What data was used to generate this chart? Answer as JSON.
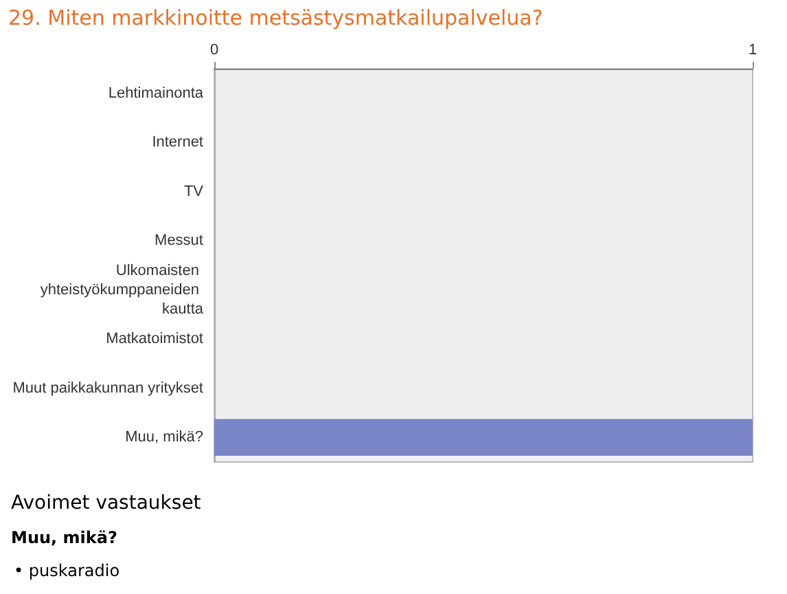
{
  "chart_data": {
    "type": "bar",
    "orientation": "horizontal",
    "title": "29. Miten markkinoitte metsästysmatkailupalvelua?",
    "categories": [
      "Lehtimainonta",
      "Internet",
      "TV",
      "Messut",
      "Ulkomaisten yhteistyökumppaneiden kautta",
      "Matkatoimistot",
      "Muut paikkakunnan yritykset",
      "Muu, mikä?"
    ],
    "values": [
      0,
      0,
      0,
      0,
      0,
      0,
      0,
      1
    ],
    "color": "#7b86c8",
    "xlim": [
      0,
      1
    ],
    "xticks": [
      0,
      1
    ],
    "annotations": [
      "Avoimet vastaukset",
      "Muu, mikä?",
      "• puskaradio"
    ]
  }
}
